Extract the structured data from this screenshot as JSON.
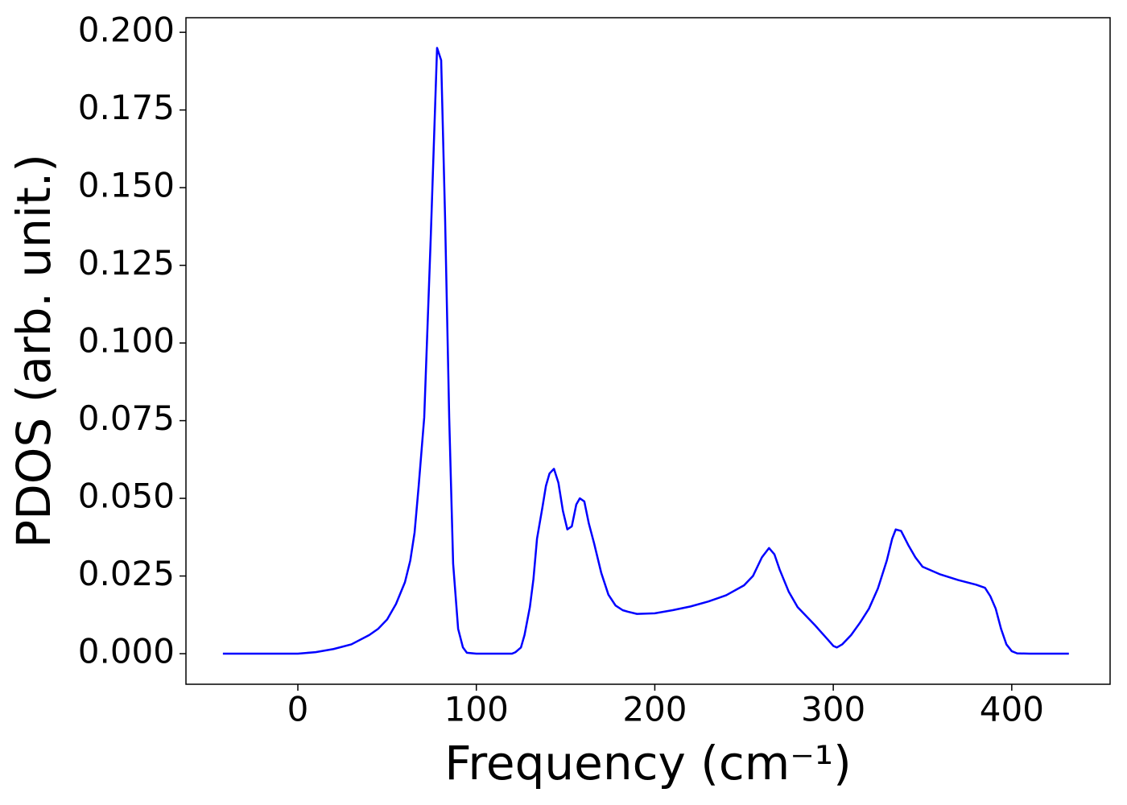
{
  "chart_data": {
    "type": "line",
    "xlabel": "Frequency (cm⁻¹)",
    "ylabel": "PDOS (arb. unit.)",
    "x": [
      -42,
      0,
      10,
      20,
      30,
      40,
      45,
      50,
      55,
      60,
      63,
      65.4,
      67.7,
      70.8,
      74.4,
      78,
      80.3,
      82.5,
      84.8,
      87,
      89.8,
      92.5,
      94.7,
      100,
      120,
      122,
      125,
      127,
      130,
      132,
      134,
      137,
      139,
      141,
      143.5,
      146,
      148.5,
      151,
      153.5,
      156,
      158,
      160.5,
      163,
      166,
      170,
      174,
      178,
      182,
      185,
      190,
      200,
      210,
      220,
      230,
      240,
      250,
      255,
      260,
      264,
      267,
      270,
      275,
      280,
      290,
      297,
      300,
      302,
      305,
      310,
      315,
      320,
      325,
      330,
      333,
      335,
      338,
      342,
      346,
      350,
      360,
      370,
      380,
      385,
      388,
      391,
      394,
      397,
      400,
      403,
      410,
      432
    ],
    "series": [
      {
        "color": "#0000ff",
        "values": [
          0,
          0,
          0.0005,
          0.0015,
          0.003,
          0.006,
          0.008,
          0.011,
          0.016,
          0.023,
          0.03,
          0.039,
          0.054,
          0.076,
          0.133,
          0.195,
          0.191,
          0.14,
          0.076,
          0.029,
          0.008,
          0.002,
          0.0003,
          0,
          0,
          0.0005,
          0.002,
          0.006,
          0.015,
          0.024,
          0.037,
          0.047,
          0.054,
          0.058,
          0.0595,
          0.055,
          0.046,
          0.04,
          0.041,
          0.048,
          0.05,
          0.049,
          0.042,
          0.0355,
          0.026,
          0.019,
          0.0155,
          0.014,
          0.0135,
          0.0128,
          0.013,
          0.014,
          0.0152,
          0.0168,
          0.0188,
          0.022,
          0.025,
          0.031,
          0.034,
          0.032,
          0.027,
          0.02,
          0.015,
          0.009,
          0.0045,
          0.0025,
          0.002,
          0.003,
          0.006,
          0.01,
          0.0145,
          0.021,
          0.03,
          0.037,
          0.04,
          0.0395,
          0.035,
          0.031,
          0.028,
          0.0255,
          0.0237,
          0.0222,
          0.0212,
          0.0185,
          0.0145,
          0.008,
          0.003,
          0.0008,
          0.0001,
          0,
          0
        ]
      }
    ],
    "xlim": [
      -62.7,
      455.1
    ],
    "ylim": [
      -0.00984,
      0.2047
    ],
    "xticks": [
      0,
      100,
      200,
      300,
      400
    ],
    "yticks": [
      {
        "value": 0,
        "label": "0.000"
      },
      {
        "value": 0.025,
        "label": "0.025"
      },
      {
        "value": 0.05,
        "label": "0.050"
      },
      {
        "value": 0.075,
        "label": "0.075"
      },
      {
        "value": 0.1,
        "label": "0.100"
      },
      {
        "value": 0.125,
        "label": "0.125"
      },
      {
        "value": 0.15,
        "label": "0.150"
      },
      {
        "value": 0.175,
        "label": "0.175"
      },
      {
        "value": 0.2,
        "label": "0.200"
      }
    ],
    "grid": false
  }
}
